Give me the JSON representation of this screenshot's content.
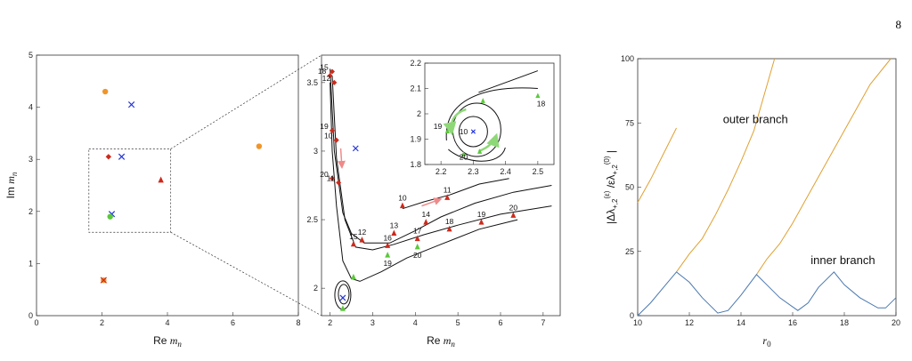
{
  "page_number": "8",
  "chart_data": [
    {
      "type": "scatter",
      "panel": "left",
      "xlabel": "Re m_n",
      "ylabel": "Im m_n",
      "xlim": [
        0,
        8
      ],
      "ylim": [
        0,
        5
      ],
      "xticks": [
        0,
        2,
        4,
        6,
        8
      ],
      "yticks": [
        0,
        1,
        2,
        3,
        4,
        5
      ],
      "zoom_box": {
        "x": [
          1.6,
          4.1
        ],
        "y": [
          1.6,
          3.2
        ]
      },
      "colors": {
        "orange": "#f0952a",
        "blue": "#2233dd",
        "red": "#cc2a1c",
        "green": "#5cc83c"
      },
      "points": [
        {
          "x": 2.1,
          "y": 4.3,
          "marker": "circle",
          "color": "orange"
        },
        {
          "x": 2.9,
          "y": 4.05,
          "marker": "x",
          "color": "blue"
        },
        {
          "x": 6.8,
          "y": 3.25,
          "marker": "circle",
          "color": "orange"
        },
        {
          "x": 2.2,
          "y": 3.05,
          "marker": "diamond",
          "color": "red"
        },
        {
          "x": 2.6,
          "y": 3.05,
          "marker": "x",
          "color": "blue"
        },
        {
          "x": 3.8,
          "y": 2.6,
          "marker": "triangle",
          "color": "red"
        },
        {
          "x": 2.3,
          "y": 1.95,
          "marker": "x",
          "color": "blue"
        },
        {
          "x": 2.25,
          "y": 1.9,
          "marker": "circle",
          "color": "green"
        },
        {
          "x": 2.05,
          "y": 0.68,
          "marker": "circle",
          "color": "orange"
        },
        {
          "x": 2.05,
          "y": 0.68,
          "marker": "x",
          "color": "red"
        }
      ]
    },
    {
      "type": "line",
      "panel": "middle",
      "xlabel": "Re m_n",
      "ylabel": "",
      "xlim": [
        1.8,
        7.4
      ],
      "ylim": [
        1.8,
        3.7
      ],
      "xticks": [
        2,
        3,
        4,
        5,
        6,
        7
      ],
      "yticks": [
        2,
        2.5,
        3,
        3.5
      ],
      "curves": [
        [
          [
            2.0,
            3.6
          ],
          [
            2.1,
            3.0
          ],
          [
            2.3,
            2.55
          ],
          [
            2.5,
            2.4
          ],
          [
            2.8,
            2.33
          ],
          [
            3.4,
            2.33
          ],
          [
            4.0,
            2.42
          ],
          [
            4.6,
            2.52
          ],
          [
            5.4,
            2.62
          ],
          [
            6.3,
            2.7
          ],
          [
            7.2,
            2.75
          ]
        ],
        [
          [
            2.05,
            3.55
          ],
          [
            2.15,
            2.95
          ],
          [
            2.35,
            2.5
          ],
          [
            2.6,
            2.3
          ],
          [
            3.0,
            2.28
          ],
          [
            3.5,
            2.32
          ],
          [
            4.2,
            2.39
          ],
          [
            5.0,
            2.46
          ],
          [
            6.0,
            2.54
          ],
          [
            7.2,
            2.6
          ]
        ],
        [
          [
            2.0,
            3.5
          ],
          [
            2.05,
            3.0
          ],
          [
            2.15,
            2.6
          ],
          [
            2.3,
            2.2
          ],
          [
            2.5,
            2.07
          ],
          [
            2.7,
            2.05
          ],
          [
            3.2,
            2.12
          ],
          [
            3.8,
            2.22
          ],
          [
            4.6,
            2.32
          ],
          [
            5.5,
            2.43
          ],
          [
            6.4,
            2.5
          ]
        ],
        [
          [
            3.7,
            2.58
          ],
          [
            4.2,
            2.63
          ],
          [
            4.8,
            2.68
          ],
          [
            5.5,
            2.76
          ],
          [
            6.2,
            2.8
          ]
        ]
      ],
      "loop_center": [
        2.3,
        1.95
      ],
      "points": [
        {
          "label": "18",
          "x": 2.0,
          "y": 3.55,
          "marker": "diamond",
          "color": "red"
        },
        {
          "label": "15",
          "x": 2.05,
          "y": 3.58,
          "marker": "diamond",
          "color": "red"
        },
        {
          "label": "12",
          "x": 2.1,
          "y": 3.5,
          "marker": "diamond",
          "color": "red"
        },
        {
          "label": "19",
          "x": 2.05,
          "y": 3.15,
          "marker": "diamond",
          "color": "red"
        },
        {
          "label": "10",
          "x": 2.15,
          "y": 3.08,
          "marker": "diamond",
          "color": "red"
        },
        {
          "label": "20",
          "x": 2.05,
          "y": 2.8,
          "marker": "diamond",
          "color": "red"
        },
        {
          "label": "11",
          "x": 2.2,
          "y": 2.77,
          "marker": "diamond",
          "color": "red"
        },
        {
          "label": "",
          "x": 2.6,
          "y": 3.02,
          "marker": "x",
          "color": "blue"
        },
        {
          "label": "12",
          "x": 2.75,
          "y": 2.35,
          "marker": "triangle",
          "color": "red"
        },
        {
          "label": "15",
          "x": 2.55,
          "y": 2.32,
          "marker": "triangle",
          "color": "red"
        },
        {
          "label": "13",
          "x": 3.5,
          "y": 2.4,
          "marker": "triangle",
          "color": "red"
        },
        {
          "label": "16",
          "x": 3.35,
          "y": 2.31,
          "marker": "triangle",
          "color": "red"
        },
        {
          "label": "14",
          "x": 4.25,
          "y": 2.48,
          "marker": "triangle",
          "color": "red"
        },
        {
          "label": "17",
          "x": 4.05,
          "y": 2.36,
          "marker": "triangle",
          "color": "red"
        },
        {
          "label": "18",
          "x": 4.8,
          "y": 2.43,
          "marker": "triangle",
          "color": "red"
        },
        {
          "label": "19",
          "x": 5.55,
          "y": 2.48,
          "marker": "triangle",
          "color": "red"
        },
        {
          "label": "20",
          "x": 6.3,
          "y": 2.53,
          "marker": "triangle",
          "color": "red"
        },
        {
          "label": "10",
          "x": 3.7,
          "y": 2.6,
          "marker": "triangle",
          "color": "red"
        },
        {
          "label": "11",
          "x": 4.75,
          "y": 2.66,
          "marker": "triangle",
          "color": "red"
        },
        {
          "label": "19",
          "x": 3.35,
          "y": 2.24,
          "marker": "triangle",
          "color": "green"
        },
        {
          "label": "20",
          "x": 4.05,
          "y": 2.3,
          "marker": "triangle",
          "color": "green"
        },
        {
          "label": "",
          "x": 2.55,
          "y": 2.08,
          "marker": "triangle",
          "color": "green"
        },
        {
          "label": "",
          "x": 2.3,
          "y": 1.85,
          "marker": "triangle",
          "color": "green"
        },
        {
          "label": "",
          "x": 2.3,
          "y": 1.93,
          "marker": "x",
          "color": "blue"
        }
      ],
      "inset": {
        "xlim": [
          2.15,
          2.55
        ],
        "ylim": [
          1.8,
          2.2
        ],
        "xticks": [
          2.2,
          2.3,
          2.4,
          2.5
        ],
        "yticks": [
          1.8,
          1.9,
          2,
          2.1,
          2.2
        ],
        "labels": [
          "18",
          "19",
          "10",
          "20"
        ]
      }
    },
    {
      "type": "line",
      "panel": "right",
      "xlabel": "r_0",
      "ylabel": "|Δλ_{+,2}^{(ε)}/ελ_{+,2}^{(0)}|",
      "xlim": [
        10,
        20
      ],
      "ylim": [
        0,
        100
      ],
      "xticks": [
        10,
        12,
        14,
        16,
        18,
        20
      ],
      "yticks": [
        0,
        25,
        50,
        75,
        100
      ],
      "annotations": [
        "outer branch",
        "inner branch"
      ],
      "series": [
        {
          "color": "#e0a030",
          "x": [
            10,
            10.5,
            11,
            11.5
          ],
          "y": [
            44,
            53,
            63,
            73
          ]
        },
        {
          "color": "#e0a030",
          "x": [
            11.5,
            12,
            12.5,
            13,
            13.5,
            14,
            14.5,
            15.3
          ],
          "y": [
            17,
            24,
            30,
            39,
            49,
            60,
            72,
            100
          ]
        },
        {
          "color": "#e0a030",
          "x": [
            14.6,
            15,
            15.5,
            16,
            16.5,
            17,
            17.5,
            18,
            18.5,
            19,
            19.8
          ],
          "y": [
            16,
            22,
            28,
            36,
            45,
            54,
            63,
            72,
            81,
            90,
            100
          ]
        },
        {
          "color": "#4a78b0",
          "x": [
            10,
            10.5,
            11,
            11.5,
            12,
            12.5,
            13.1,
            13.5,
            14,
            14.6,
            15,
            15.5,
            16.2,
            16.6,
            17,
            17.6,
            18,
            18.6,
            19.3,
            19.6,
            20
          ],
          "y": [
            0,
            5,
            11,
            17,
            13,
            7,
            1,
            2,
            8,
            16,
            12,
            7,
            2,
            5,
            11,
            17,
            12,
            7,
            3,
            3,
            7
          ]
        }
      ]
    }
  ]
}
